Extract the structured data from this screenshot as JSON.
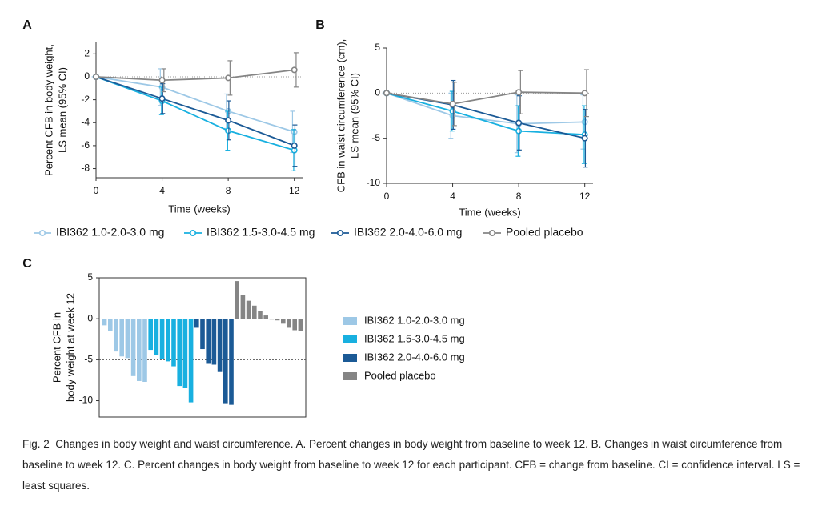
{
  "chart_data": [
    {
      "type": "line",
      "panel": "A",
      "ylabel": [
        "Percent CFB in body weight,",
        "LS mean (95% CI)"
      ],
      "xlabel": "Time  (weeks)",
      "x": [
        0,
        4,
        8,
        12
      ],
      "xlim": [
        0,
        12.5
      ],
      "xticks": [
        0,
        4,
        8,
        12
      ],
      "ylim": [
        -8.8,
        3
      ],
      "yticks": [
        -8,
        -6,
        -4,
        -2,
        0,
        2
      ],
      "series": [
        {
          "name": "IBI362 1.0-2.0-3.0 mg",
          "color": "#9dc8e6",
          "values": [
            0,
            -0.9,
            -3.0,
            -4.8
          ],
          "errors": [
            0,
            1.6,
            1.5,
            1.8
          ]
        },
        {
          "name": "IBI362 1.5-3.0-4.5 mg",
          "color": "#18b0e0",
          "values": [
            0,
            -2.1,
            -4.7,
            -6.4
          ],
          "errors": [
            0,
            1.2,
            1.7,
            1.8
          ]
        },
        {
          "name": "IBI362 2.0-4.0-6.0 mg",
          "color": "#1b5a96",
          "values": [
            0,
            -1.9,
            -3.8,
            -6.0
          ],
          "errors": [
            0,
            1.3,
            1.7,
            1.8
          ]
        },
        {
          "name": "Pooled placebo",
          "color": "#858585",
          "values": [
            0,
            -0.3,
            -0.1,
            0.6
          ],
          "errors": [
            0,
            1.0,
            1.5,
            1.5
          ]
        }
      ]
    },
    {
      "type": "line",
      "panel": "B",
      "ylabel": [
        "CFB in waist circumference (cm),",
        "LS mean (95% CI)"
      ],
      "xlabel": "Time  (weeks)",
      "x": [
        0,
        4,
        8,
        12
      ],
      "xlim": [
        0,
        12.5
      ],
      "xticks": [
        0,
        4,
        8,
        12
      ],
      "ylim": [
        -10,
        5
      ],
      "yticks": [
        -10,
        -5,
        0,
        5
      ],
      "series": [
        {
          "color": "#9dc8e6",
          "values": [
            0,
            -2.5,
            -3.4,
            -3.2
          ],
          "errors": [
            0,
            2.5,
            3.2,
            3.0
          ]
        },
        {
          "color": "#18b0e0",
          "values": [
            0,
            -2.0,
            -4.2,
            -4.6
          ],
          "errors": [
            0,
            2.2,
            2.8,
            3.2
          ]
        },
        {
          "color": "#1b5a96",
          "values": [
            0,
            -1.3,
            -3.3,
            -5.0
          ],
          "errors": [
            0,
            2.7,
            3.0,
            3.2
          ]
        },
        {
          "color": "#858585",
          "values": [
            0,
            -1.2,
            0.1,
            0.0
          ],
          "errors": [
            0,
            2.4,
            2.4,
            2.6
          ]
        }
      ]
    },
    {
      "type": "bar",
      "panel": "C",
      "ylabel": [
        "Percent CFB in",
        "body weight at week 12"
      ],
      "ylim": [
        -12,
        5
      ],
      "yticks": [
        -10,
        -5,
        0,
        5
      ],
      "series": [
        {
          "name": "IBI362 1.0-2.0-3.0 mg",
          "color": "#9dc8e6",
          "values": [
            -0.8,
            -1.5,
            -4.0,
            -4.6,
            -4.8,
            -7.0,
            -7.6,
            -7.7
          ]
        },
        {
          "name": "IBI362 1.5-3.0-4.5 mg",
          "color": "#18b0e0",
          "values": [
            -3.8,
            -4.4,
            -4.9,
            -5.2,
            -5.8,
            -8.2,
            -8.4,
            -10.2
          ]
        },
        {
          "name": "IBI362 2.0-4.0-6.0 mg",
          "color": "#1b5a96",
          "values": [
            -1.1,
            -3.7,
            -5.5,
            -5.6,
            -6.5,
            -10.3,
            -10.5
          ]
        },
        {
          "name": "Pooled placebo",
          "color": "#858585",
          "values": [
            4.6,
            2.9,
            2.2,
            1.6,
            0.9,
            0.4,
            -0.1,
            -0.2,
            -0.6,
            -1.1,
            -1.4,
            -1.5
          ]
        }
      ]
    }
  ],
  "caption": {
    "label": "Fig. 2",
    "text": "Changes in body weight and waist circumference. A. Percent changes in body weight from baseline to week 12. B. Changes in waist circumference from baseline to week 12. C. Percent changes in body weight from baseline to week 12 for each participant. CFB = change from baseline. CI = confidence interval. LS = least squares."
  }
}
